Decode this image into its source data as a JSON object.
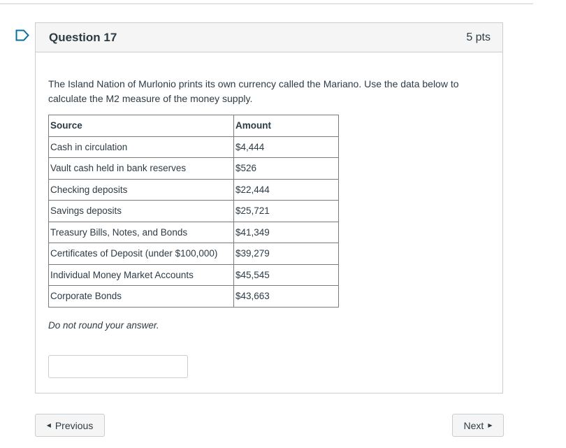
{
  "question": {
    "title": "Question 17",
    "points": "5 pts",
    "text": "The Island Nation of Murlonio prints its own currency called the Mariano. Use the data below to calculate the M2 measure of the money supply.",
    "hint": "Do not round your answer.",
    "answer_value": ""
  },
  "table": {
    "headers": [
      "Source",
      "Amount"
    ],
    "rows": [
      [
        "Cash in circulation",
        "$4,444"
      ],
      [
        "Vault cash held in bank reserves",
        "$526"
      ],
      [
        "Checking deposits",
        "$22,444"
      ],
      [
        "Savings deposits",
        "$25,721"
      ],
      [
        "Treasury Bills, Notes, and Bonds",
        "$41,349"
      ],
      [
        "Certificates of Deposit (under $100,000)",
        "$39,279"
      ],
      [
        "Individual Money Market Accounts",
        "$45,545"
      ],
      [
        "Corporate Bonds",
        "$43,663"
      ]
    ]
  },
  "nav": {
    "previous_label": "Previous",
    "next_label": "Next"
  },
  "icons": {
    "flag": "bookmark-flag-icon",
    "prev": "caret-left-icon",
    "next": "caret-right-icon"
  },
  "colors": {
    "flag": "#0770a3",
    "border": "#c7cdd1",
    "header_bg": "#f5f5f5",
    "text": "#2d3b45"
  }
}
